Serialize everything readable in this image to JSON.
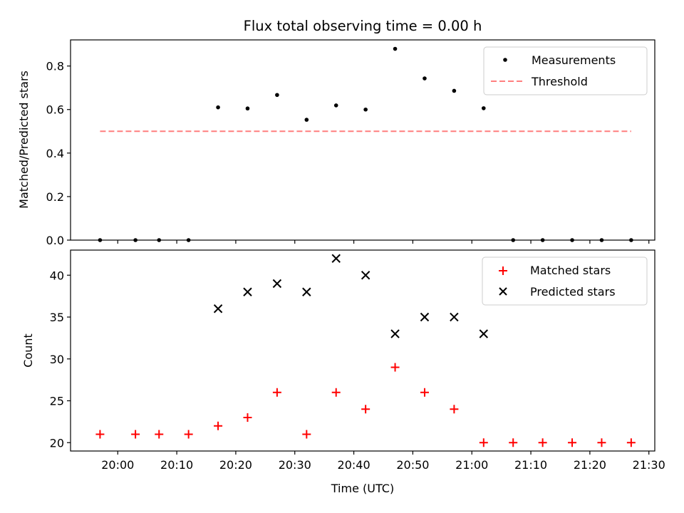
{
  "chart_data": [
    {
      "type": "scatter",
      "title": "Flux total observing time = 0.00 h",
      "xlabel": "",
      "ylabel": "Matched/Predicted stars",
      "ylim": [
        0.0,
        0.92
      ],
      "yticks": [
        0.0,
        0.2,
        0.4,
        0.6,
        0.8
      ],
      "ytick_labels": [
        "0.0",
        "0.2",
        "0.4",
        "0.6",
        "0.8"
      ],
      "legend_position": "top-right",
      "series": [
        {
          "name": "Measurements",
          "marker": "dot",
          "color": "#000000",
          "points": [
            {
              "x": "19:57",
              "y": 0.0
            },
            {
              "x": "20:03",
              "y": 0.0
            },
            {
              "x": "20:07",
              "y": 0.0
            },
            {
              "x": "20:12",
              "y": 0.0
            },
            {
              "x": "20:17",
              "y": 0.61
            },
            {
              "x": "20:22",
              "y": 0.605
            },
            {
              "x": "20:27",
              "y": 0.667
            },
            {
              "x": "20:32",
              "y": 0.553
            },
            {
              "x": "20:37",
              "y": 0.619
            },
            {
              "x": "20:42",
              "y": 0.6
            },
            {
              "x": "20:47",
              "y": 0.879
            },
            {
              "x": "20:52",
              "y": 0.743
            },
            {
              "x": "20:57",
              "y": 0.686
            },
            {
              "x": "21:02",
              "y": 0.606
            },
            {
              "x": "21:07",
              "y": 0.0
            },
            {
              "x": "21:12",
              "y": 0.0
            },
            {
              "x": "21:17",
              "y": 0.0
            },
            {
              "x": "21:22",
              "y": 0.0
            },
            {
              "x": "21:27",
              "y": 0.0
            }
          ]
        },
        {
          "name": "Threshold",
          "marker": "dashed-line",
          "color": "#ff7f7f",
          "points": [
            {
              "x": "19:57",
              "y": 0.5
            },
            {
              "x": "21:27",
              "y": 0.5
            }
          ]
        }
      ]
    },
    {
      "type": "scatter",
      "title": "",
      "xlabel": "Time (UTC)",
      "ylabel": "Count",
      "ylim": [
        19.0,
        43.0
      ],
      "yticks": [
        20,
        25,
        30,
        35,
        40
      ],
      "ytick_labels": [
        "20",
        "25",
        "30",
        "35",
        "40"
      ],
      "xticks": [
        "20:00",
        "20:10",
        "20:20",
        "20:30",
        "20:40",
        "20:50",
        "21:00",
        "21:10",
        "21:20",
        "21:30"
      ],
      "xlim": [
        "19:52",
        "21:31"
      ],
      "legend_position": "top-right",
      "series": [
        {
          "name": "Matched stars",
          "marker": "plus",
          "color": "#ff0000",
          "points": [
            {
              "x": "19:57",
              "y": 21
            },
            {
              "x": "20:03",
              "y": 21
            },
            {
              "x": "20:07",
              "y": 21
            },
            {
              "x": "20:12",
              "y": 21
            },
            {
              "x": "20:17",
              "y": 22
            },
            {
              "x": "20:22",
              "y": 23
            },
            {
              "x": "20:27",
              "y": 26
            },
            {
              "x": "20:32",
              "y": 21
            },
            {
              "x": "20:37",
              "y": 26
            },
            {
              "x": "20:42",
              "y": 24
            },
            {
              "x": "20:47",
              "y": 29
            },
            {
              "x": "20:52",
              "y": 26
            },
            {
              "x": "20:57",
              "y": 24
            },
            {
              "x": "21:02",
              "y": 20
            },
            {
              "x": "21:07",
              "y": 20
            },
            {
              "x": "21:12",
              "y": 20
            },
            {
              "x": "21:17",
              "y": 20
            },
            {
              "x": "21:22",
              "y": 20
            },
            {
              "x": "21:27",
              "y": 20
            }
          ]
        },
        {
          "name": "Predicted stars",
          "marker": "x",
          "color": "#000000",
          "points": [
            {
              "x": "20:17",
              "y": 36
            },
            {
              "x": "20:22",
              "y": 38
            },
            {
              "x": "20:27",
              "y": 39
            },
            {
              "x": "20:32",
              "y": 38
            },
            {
              "x": "20:37",
              "y": 42
            },
            {
              "x": "20:42",
              "y": 40
            },
            {
              "x": "20:47",
              "y": 33
            },
            {
              "x": "20:52",
              "y": 35
            },
            {
              "x": "20:57",
              "y": 35
            },
            {
              "x": "21:02",
              "y": 33
            }
          ]
        }
      ]
    }
  ]
}
